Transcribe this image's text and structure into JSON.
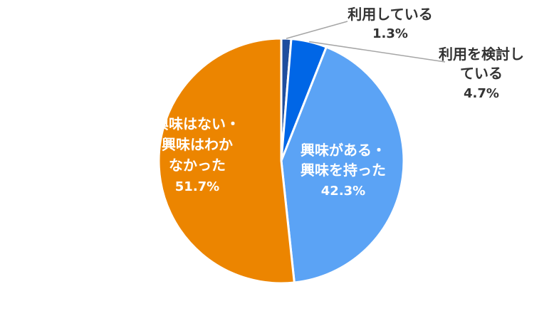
{
  "chart_data": {
    "type": "pie",
    "title": "",
    "slices": [
      {
        "label_lines": [
          "利用している"
        ],
        "value": 1.3,
        "value_label": "1.3%",
        "color": "#1F4E9E"
      },
      {
        "label_lines": [
          "利用を検討し",
          "ている"
        ],
        "value": 4.7,
        "value_label": "4.7%",
        "color": "#0066E6"
      },
      {
        "label_lines": [
          "興味がある・",
          "興味を持った"
        ],
        "value": 42.3,
        "value_label": "42.3%",
        "color": "#5BA3F5"
      },
      {
        "label_lines": [
          "興味はない・",
          "興味はわか",
          "なかった"
        ],
        "value": 51.7,
        "value_label": "51.7%",
        "color": "#EC8500"
      }
    ]
  }
}
